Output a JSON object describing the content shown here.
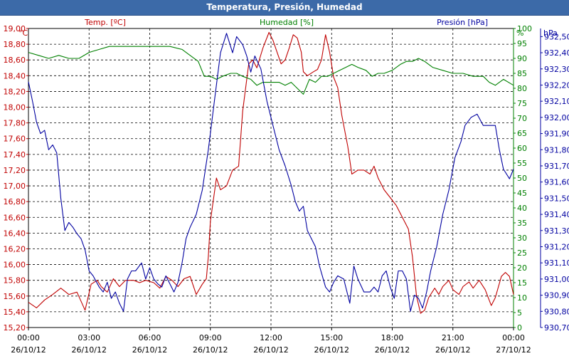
{
  "window": {
    "title": "Temperatura, Presión, Humedad"
  },
  "chart_data": {
    "type": "line",
    "title": "Temperatura, Presión, Humedad",
    "grid": true,
    "x": {
      "ticks": [
        {
          "t": 0,
          "time": "00:00",
          "date": "26/10/12"
        },
        {
          "t": 3,
          "time": "03:00",
          "date": "26/10/12"
        },
        {
          "t": 6,
          "time": "06:00",
          "date": "26/10/12"
        },
        {
          "t": 9,
          "time": "09:00",
          "date": "26/10/12"
        },
        {
          "t": 12,
          "time": "12:00",
          "date": "26/10/12"
        },
        {
          "t": 15,
          "time": "15:00",
          "date": "26/10/12"
        },
        {
          "t": 18,
          "time": "18:00",
          "date": "26/10/12"
        },
        {
          "t": 21,
          "time": "21:00",
          "date": "26/10/12"
        },
        {
          "t": 24,
          "time": "00:00",
          "date": "27/10/12"
        }
      ],
      "range_hours": [
        0,
        24
      ]
    },
    "axes": {
      "temp": {
        "unit": "°C",
        "ylim": [
          15.2,
          19.0
        ],
        "color": "#c00000",
        "ticks": [
          "19,00",
          "18,80",
          "18,60",
          "18,40",
          "18,20",
          "18,00",
          "17,80",
          "17,60",
          "17,40",
          "17,20",
          "17,00",
          "16,80",
          "16,60",
          "16,40",
          "16,20",
          "16,00",
          "15,80",
          "15,60",
          "15,40",
          "15,20"
        ]
      },
      "hum": {
        "unit": "%",
        "ylim": [
          0,
          100
        ],
        "color": "#008000",
        "ticks": [
          "100",
          "95",
          "90",
          "85",
          "80",
          "75",
          "70",
          "65",
          "60",
          "55",
          "50",
          "45",
          "40",
          "35",
          "30",
          "25",
          "20",
          "15",
          "10",
          "5",
          "0"
        ]
      },
      "pres": {
        "unit": "hPa",
        "ylim": [
          930.7,
          932.55
        ],
        "color": "#0000a0",
        "ticks": [
          "932,50",
          "932,40",
          "932,30",
          "932,20",
          "932,10",
          "932,00",
          "931,90",
          "931,80",
          "931,70",
          "931,60",
          "931,50",
          "931,40",
          "931,30",
          "931,20",
          "931,10",
          "931,00",
          "930,90",
          "930,80",
          "930,70"
        ]
      }
    },
    "series": [
      {
        "name": "Temp. [ºC]",
        "axis": "temp",
        "color": "#c00000",
        "points": [
          [
            0,
            15.52
          ],
          [
            0.4,
            15.45
          ],
          [
            0.8,
            15.55
          ],
          [
            1.2,
            15.62
          ],
          [
            1.6,
            15.7
          ],
          [
            2.0,
            15.62
          ],
          [
            2.4,
            15.65
          ],
          [
            2.8,
            15.42
          ],
          [
            3.1,
            15.75
          ],
          [
            3.4,
            15.8
          ],
          [
            3.6,
            15.72
          ],
          [
            3.9,
            15.65
          ],
          [
            4.2,
            15.82
          ],
          [
            4.5,
            15.72
          ],
          [
            4.8,
            15.8
          ],
          [
            5.2,
            15.8
          ],
          [
            5.5,
            15.77
          ],
          [
            5.8,
            15.8
          ],
          [
            6.2,
            15.77
          ],
          [
            6.5,
            15.7
          ],
          [
            6.8,
            15.85
          ],
          [
            7.1,
            15.8
          ],
          [
            7.4,
            15.72
          ],
          [
            7.7,
            15.82
          ],
          [
            8.0,
            15.85
          ],
          [
            8.3,
            15.62
          ],
          [
            8.6,
            15.75
          ],
          [
            8.8,
            15.82
          ],
          [
            8.9,
            16.1
          ],
          [
            9.0,
            16.55
          ],
          [
            9.3,
            17.1
          ],
          [
            9.5,
            16.95
          ],
          [
            9.8,
            17.0
          ],
          [
            10.1,
            17.2
          ],
          [
            10.4,
            17.25
          ],
          [
            10.6,
            17.95
          ],
          [
            10.9,
            18.55
          ],
          [
            11.1,
            18.6
          ],
          [
            11.3,
            18.5
          ],
          [
            11.6,
            18.75
          ],
          [
            11.9,
            18.95
          ],
          [
            12.1,
            18.85
          ],
          [
            12.3,
            18.7
          ],
          [
            12.5,
            18.55
          ],
          [
            12.7,
            18.6
          ],
          [
            12.9,
            18.75
          ],
          [
            13.1,
            18.92
          ],
          [
            13.3,
            18.88
          ],
          [
            13.5,
            18.7
          ],
          [
            13.6,
            18.45
          ],
          [
            13.8,
            18.4
          ],
          [
            14.1,
            18.45
          ],
          [
            14.3,
            18.48
          ],
          [
            14.5,
            18.6
          ],
          [
            14.7,
            18.92
          ],
          [
            14.9,
            18.7
          ],
          [
            15.1,
            18.38
          ],
          [
            15.3,
            18.25
          ],
          [
            15.5,
            17.9
          ],
          [
            15.8,
            17.5
          ],
          [
            16.0,
            17.15
          ],
          [
            16.3,
            17.2
          ],
          [
            16.6,
            17.2
          ],
          [
            16.9,
            17.15
          ],
          [
            17.1,
            17.25
          ],
          [
            17.3,
            17.1
          ],
          [
            17.6,
            16.95
          ],
          [
            17.9,
            16.85
          ],
          [
            18.2,
            16.75
          ],
          [
            18.5,
            16.6
          ],
          [
            18.8,
            16.45
          ],
          [
            19.0,
            16.1
          ],
          [
            19.2,
            15.6
          ],
          [
            19.4,
            15.38
          ],
          [
            19.6,
            15.42
          ],
          [
            19.8,
            15.58
          ],
          [
            20.1,
            15.7
          ],
          [
            20.3,
            15.62
          ],
          [
            20.5,
            15.72
          ],
          [
            20.8,
            15.8
          ],
          [
            21.0,
            15.68
          ],
          [
            21.3,
            15.62
          ],
          [
            21.5,
            15.72
          ],
          [
            21.8,
            15.78
          ],
          [
            22.0,
            15.7
          ],
          [
            22.3,
            15.8
          ],
          [
            22.6,
            15.68
          ],
          [
            22.9,
            15.48
          ],
          [
            23.1,
            15.58
          ],
          [
            23.4,
            15.85
          ],
          [
            23.6,
            15.9
          ],
          [
            23.8,
            15.85
          ],
          [
            24.0,
            15.62
          ]
        ]
      },
      {
        "name": "Humedad [%]",
        "axis": "hum",
        "color": "#008000",
        "points": [
          [
            0,
            92
          ],
          [
            0.5,
            91
          ],
          [
            1.0,
            90
          ],
          [
            1.5,
            91
          ],
          [
            2.0,
            90
          ],
          [
            2.5,
            90
          ],
          [
            3.0,
            92
          ],
          [
            3.5,
            93
          ],
          [
            4.0,
            94
          ],
          [
            5.0,
            94
          ],
          [
            6.0,
            94
          ],
          [
            7.0,
            94
          ],
          [
            7.6,
            93
          ],
          [
            8.0,
            91
          ],
          [
            8.4,
            89
          ],
          [
            8.7,
            84
          ],
          [
            9.0,
            84
          ],
          [
            9.3,
            83
          ],
          [
            9.6,
            84
          ],
          [
            10.0,
            85
          ],
          [
            10.3,
            85
          ],
          [
            10.6,
            84
          ],
          [
            11.0,
            83
          ],
          [
            11.3,
            81
          ],
          [
            11.6,
            82
          ],
          [
            12.0,
            82
          ],
          [
            12.4,
            82
          ],
          [
            12.7,
            81
          ],
          [
            13.0,
            82
          ],
          [
            13.3,
            80
          ],
          [
            13.6,
            78
          ],
          [
            13.9,
            83
          ],
          [
            14.2,
            82
          ],
          [
            14.5,
            84
          ],
          [
            14.8,
            84
          ],
          [
            15.1,
            85
          ],
          [
            15.4,
            86
          ],
          [
            15.7,
            87
          ],
          [
            16.0,
            88
          ],
          [
            16.3,
            87
          ],
          [
            16.7,
            86
          ],
          [
            17.0,
            84
          ],
          [
            17.3,
            85
          ],
          [
            17.6,
            85
          ],
          [
            18.0,
            86
          ],
          [
            18.4,
            88
          ],
          [
            18.7,
            89
          ],
          [
            19.0,
            89
          ],
          [
            19.3,
            90
          ],
          [
            19.6,
            89
          ],
          [
            20.0,
            87
          ],
          [
            20.5,
            86
          ],
          [
            21.0,
            85
          ],
          [
            21.5,
            85
          ],
          [
            22.0,
            84
          ],
          [
            22.5,
            84
          ],
          [
            22.8,
            82
          ],
          [
            23.1,
            81
          ],
          [
            23.5,
            83
          ],
          [
            24.0,
            81
          ]
        ]
      },
      {
        "name": "Presión [hPa]",
        "axis": "pres",
        "color": "#0000a0",
        "points": [
          [
            0,
            932.22
          ],
          [
            0.2,
            932.1
          ],
          [
            0.4,
            931.97
          ],
          [
            0.6,
            931.9
          ],
          [
            0.8,
            931.92
          ],
          [
            1.0,
            931.8
          ],
          [
            1.2,
            931.83
          ],
          [
            1.4,
            931.78
          ],
          [
            1.6,
            931.5
          ],
          [
            1.8,
            931.3
          ],
          [
            2.0,
            931.35
          ],
          [
            2.2,
            931.32
          ],
          [
            2.4,
            931.28
          ],
          [
            2.6,
            931.25
          ],
          [
            2.8,
            931.18
          ],
          [
            3.0,
            931.05
          ],
          [
            3.2,
            931.02
          ],
          [
            3.5,
            930.95
          ],
          [
            3.7,
            930.92
          ],
          [
            3.9,
            930.98
          ],
          [
            4.1,
            930.88
          ],
          [
            4.3,
            930.92
          ],
          [
            4.5,
            930.85
          ],
          [
            4.7,
            930.8
          ],
          [
            4.9,
            931.0
          ],
          [
            5.1,
            931.05
          ],
          [
            5.3,
            931.05
          ],
          [
            5.6,
            931.1
          ],
          [
            5.8,
            931.0
          ],
          [
            6.0,
            931.07
          ],
          [
            6.2,
            931.0
          ],
          [
            6.4,
            930.97
          ],
          [
            6.6,
            930.95
          ],
          [
            6.8,
            931.02
          ],
          [
            7.0,
            930.97
          ],
          [
            7.2,
            930.92
          ],
          [
            7.4,
            930.98
          ],
          [
            7.6,
            931.1
          ],
          [
            7.8,
            931.25
          ],
          [
            8.0,
            931.32
          ],
          [
            8.3,
            931.4
          ],
          [
            8.6,
            931.55
          ],
          [
            8.9,
            931.8
          ],
          [
            9.2,
            932.1
          ],
          [
            9.5,
            932.4
          ],
          [
            9.8,
            932.52
          ],
          [
            10.1,
            932.4
          ],
          [
            10.3,
            932.5
          ],
          [
            10.6,
            932.45
          ],
          [
            10.8,
            932.38
          ],
          [
            11.0,
            932.28
          ],
          [
            11.2,
            932.38
          ],
          [
            11.5,
            932.3
          ],
          [
            11.8,
            932.1
          ],
          [
            12.1,
            931.95
          ],
          [
            12.4,
            931.8
          ],
          [
            12.7,
            931.7
          ],
          [
            13.0,
            931.58
          ],
          [
            13.2,
            931.48
          ],
          [
            13.4,
            931.42
          ],
          [
            13.6,
            931.45
          ],
          [
            13.8,
            931.3
          ],
          [
            14.0,
            931.25
          ],
          [
            14.2,
            931.2
          ],
          [
            14.4,
            931.08
          ],
          [
            14.7,
            930.95
          ],
          [
            14.9,
            930.92
          ],
          [
            15.1,
            930.98
          ],
          [
            15.3,
            931.02
          ],
          [
            15.6,
            931.0
          ],
          [
            15.9,
            930.85
          ],
          [
            16.1,
            931.08
          ],
          [
            16.3,
            931.0
          ],
          [
            16.6,
            930.92
          ],
          [
            16.9,
            930.92
          ],
          [
            17.1,
            930.95
          ],
          [
            17.3,
            930.92
          ],
          [
            17.5,
            931.02
          ],
          [
            17.7,
            931.05
          ],
          [
            17.9,
            930.95
          ],
          [
            18.1,
            930.88
          ],
          [
            18.3,
            931.05
          ],
          [
            18.5,
            931.05
          ],
          [
            18.7,
            931.0
          ],
          [
            18.9,
            930.8
          ],
          [
            19.1,
            930.9
          ],
          [
            19.3,
            930.88
          ],
          [
            19.5,
            930.82
          ],
          [
            19.7,
            930.92
          ],
          [
            19.9,
            931.05
          ],
          [
            20.2,
            931.2
          ],
          [
            20.5,
            931.4
          ],
          [
            20.8,
            931.55
          ],
          [
            21.1,
            931.75
          ],
          [
            21.4,
            931.85
          ],
          [
            21.6,
            931.95
          ],
          [
            21.9,
            932.0
          ],
          [
            22.2,
            932.02
          ],
          [
            22.5,
            931.95
          ],
          [
            22.8,
            931.95
          ],
          [
            23.1,
            931.95
          ],
          [
            23.3,
            931.8
          ],
          [
            23.5,
            931.68
          ],
          [
            23.8,
            931.62
          ],
          [
            24.0,
            931.68
          ]
        ]
      }
    ]
  }
}
